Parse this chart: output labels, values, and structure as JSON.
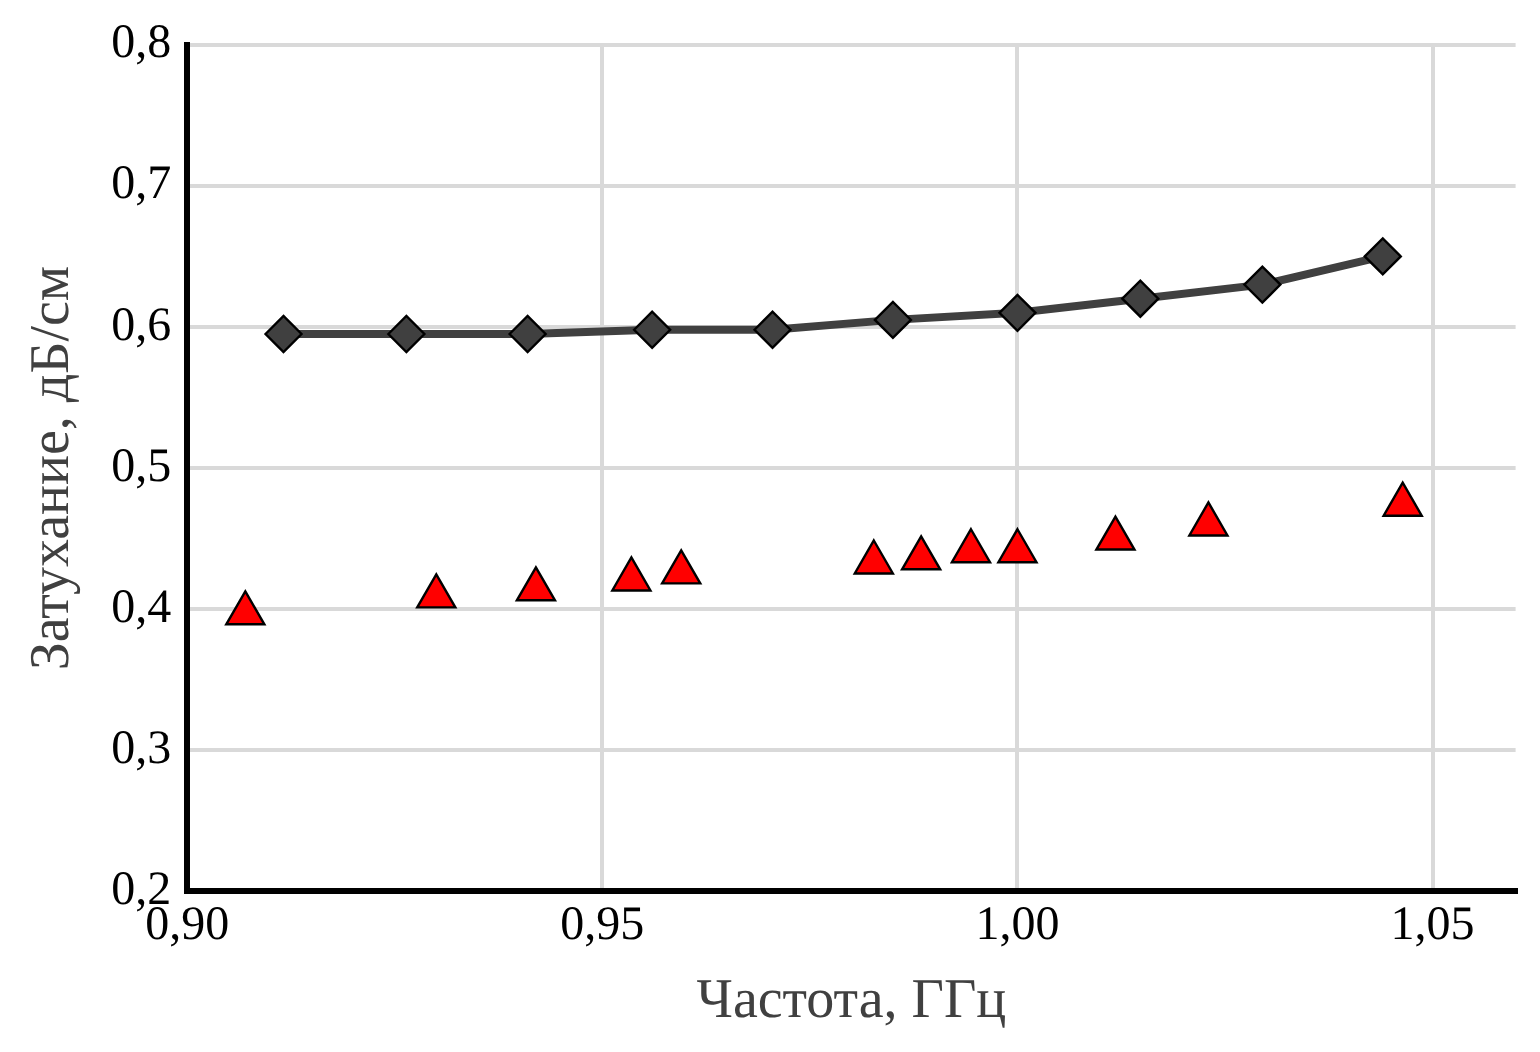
{
  "chart_data": {
    "type": "scatter",
    "xlabel": "Частота, ГГц",
    "ylabel": "Затухание, дБ/см",
    "xlim": [
      0.9,
      1.06
    ],
    "xticks": [
      {
        "value": 0.9,
        "label": "0,90"
      },
      {
        "value": 0.95,
        "label": "0,95"
      },
      {
        "value": 1.0,
        "label": "1,00"
      },
      {
        "value": 1.05,
        "label": "1,05"
      }
    ],
    "ylim": [
      0.2,
      0.8
    ],
    "yticks": [
      {
        "value": 0.2,
        "label": "0,2"
      },
      {
        "value": 0.3,
        "label": "0,3"
      },
      {
        "value": 0.4,
        "label": "0,4"
      },
      {
        "value": 0.5,
        "label": "0,5"
      },
      {
        "value": 0.6,
        "label": "0,6"
      },
      {
        "value": 0.7,
        "label": "0,7"
      },
      {
        "value": 0.8,
        "label": "0,8"
      }
    ],
    "grid": true,
    "series": [
      {
        "type": "scatter",
        "marker": "triangle",
        "color": "#ff0000",
        "x": [
          0.907,
          0.93,
          0.942,
          0.9535,
          0.9595,
          0.9827,
          0.9884,
          0.9944,
          1.0,
          1.0118,
          1.023,
          1.0464
        ],
        "values": [
          0.397,
          0.409,
          0.414,
          0.421,
          0.426,
          0.433,
          0.436,
          0.441,
          0.441,
          0.45,
          0.46,
          0.474
        ]
      },
      {
        "type": "line",
        "marker": "diamond",
        "line_style": "solid",
        "color": "#404040",
        "x": [
          0.9116,
          0.9264,
          0.941,
          0.956,
          0.9705,
          0.985,
          1.0,
          1.0148,
          1.0295,
          1.044
        ],
        "values": [
          0.595,
          0.595,
          0.595,
          0.598,
          0.598,
          0.605,
          0.61,
          0.62,
          0.63,
          0.65
        ]
      }
    ]
  }
}
